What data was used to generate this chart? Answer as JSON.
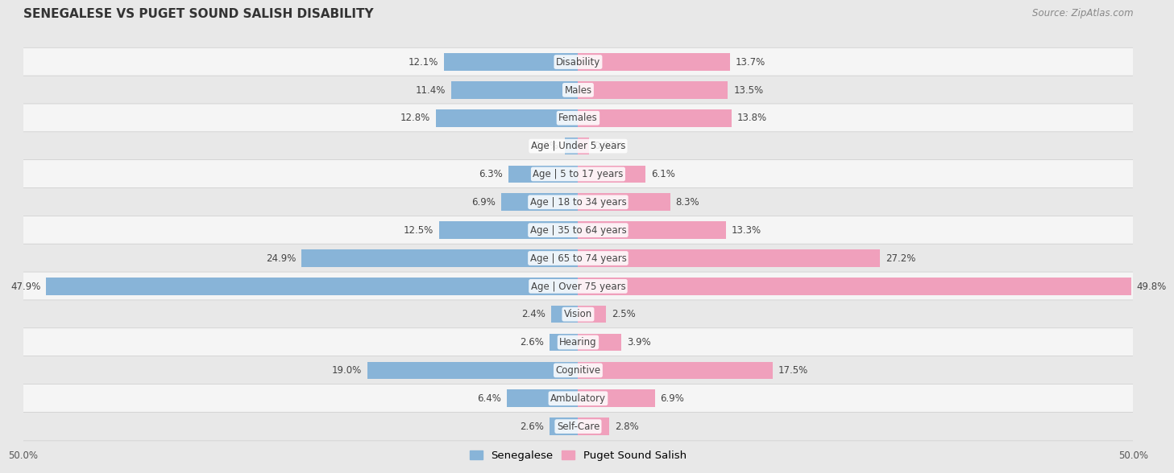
{
  "title": "SENEGALESE VS PUGET SOUND SALISH DISABILITY",
  "source": "Source: ZipAtlas.com",
  "categories": [
    "Disability",
    "Males",
    "Females",
    "Age | Under 5 years",
    "Age | 5 to 17 years",
    "Age | 18 to 34 years",
    "Age | 35 to 64 years",
    "Age | 65 to 74 years",
    "Age | Over 75 years",
    "Vision",
    "Hearing",
    "Cognitive",
    "Ambulatory",
    "Self-Care"
  ],
  "senegalese": [
    12.1,
    11.4,
    12.8,
    1.2,
    6.3,
    6.9,
    12.5,
    24.9,
    47.9,
    2.4,
    2.6,
    19.0,
    6.4,
    2.6
  ],
  "puget_sound": [
    13.7,
    13.5,
    13.8,
    0.97,
    6.1,
    8.3,
    13.3,
    27.2,
    49.8,
    2.5,
    3.9,
    17.5,
    6.9,
    2.8
  ],
  "senegalese_color": "#88b4d8",
  "puget_sound_color": "#f0a0bc",
  "axis_max": 50.0,
  "fig_bg": "#e8e8e8",
  "row_bg_even": "#f5f5f5",
  "row_bg_odd": "#e8e8e8",
  "label_fontsize": 8.5,
  "title_fontsize": 11,
  "legend_fontsize": 9.5,
  "source_fontsize": 8.5
}
